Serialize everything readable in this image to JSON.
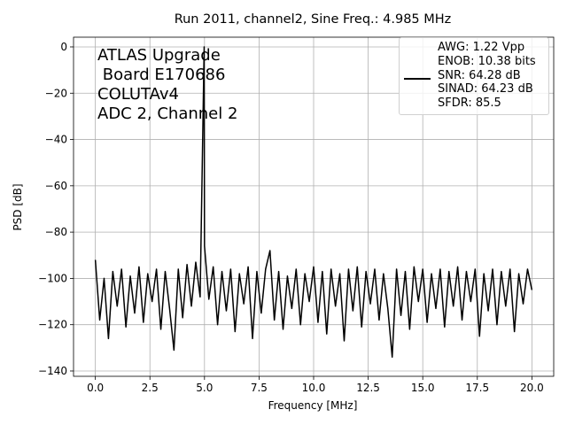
{
  "chart_data": {
    "type": "line",
    "title": "Run 2011, channel2, Sine Freq.: 4.985 MHz",
    "xlabel": "Frequency [MHz]",
    "ylabel": "PSD [dB]",
    "annotation": "ATLAS Upgrade\n Board E170686\nCOLUTAv4\nADC 2, Channel 2",
    "grid": true,
    "legend": "upper right",
    "xlim": [
      -1.0,
      21.0
    ],
    "ylim": [
      -142.3,
      4.2
    ],
    "xticks": [
      {
        "value": 0,
        "label": "0.0"
      },
      2.5,
      {
        "value": 5,
        "label": "5.0"
      },
      7.5,
      {
        "value": 10,
        "label": "10.0"
      },
      12.5,
      {
        "value": 15,
        "label": "15.0"
      },
      17.5,
      {
        "value": 20,
        "label": "20.0"
      }
    ],
    "yticks": [
      0,
      {
        "value": -20,
        "label": "−20"
      },
      {
        "value": -40,
        "label": "−40"
      },
      {
        "value": -60,
        "label": "−60"
      },
      {
        "value": -80,
        "label": "−80"
      },
      {
        "value": -100,
        "label": "−100"
      },
      {
        "value": -120,
        "label": "−120"
      },
      {
        "value": -140,
        "label": "−140"
      }
    ],
    "x": [
      0,
      0.2,
      0.4,
      0.6,
      0.8,
      1.0,
      1.2,
      1.4,
      1.6,
      1.8,
      2.0,
      2.2,
      2.4,
      2.6,
      2.8,
      3.0,
      3.2,
      3.4,
      3.6,
      3.8,
      4.0,
      4.2,
      4.4,
      4.6,
      4.8,
      4.985,
      5.0,
      5.2,
      5.4,
      5.6,
      5.8,
      6.0,
      6.2,
      6.4,
      6.6,
      6.8,
      7.0,
      7.2,
      7.4,
      7.6,
      7.8,
      8.0,
      8.2,
      8.4,
      8.6,
      8.8,
      9.0,
      9.2,
      9.4,
      9.6,
      9.8,
      10.0,
      10.2,
      10.4,
      10.6,
      10.8,
      11.0,
      11.2,
      11.4,
      11.6,
      11.8,
      12.0,
      12.2,
      12.4,
      12.6,
      12.8,
      13.0,
      13.2,
      13.4,
      13.6,
      13.8,
      14.0,
      14.2,
      14.4,
      14.6,
      14.8,
      15.0,
      15.2,
      15.4,
      15.6,
      15.8,
      16.0,
      16.2,
      16.4,
      16.6,
      16.8,
      17.0,
      17.2,
      17.4,
      17.6,
      17.8,
      18.0,
      18.2,
      18.4,
      18.6,
      18.8,
      19.0,
      19.2,
      19.4,
      19.6,
      19.8,
      20.0
    ],
    "series": [
      {
        "name": "AWG: 1.22 Vpp\nENOB: 10.38 bits\nSNR: 64.28 dB\nSINAD: 64.23 dB\nSFDR: 85.5",
        "color": "#000000",
        "values": [
          -92,
          -118,
          -100,
          -126,
          -97,
          -112,
          -96,
          -121,
          -99,
          -115,
          -95,
          -119,
          -98,
          -110,
          -96,
          -122,
          -97,
          -113,
          -131,
          -96,
          -117,
          -94,
          -112,
          -93,
          -108,
          0,
          -86,
          -109,
          -95,
          -120,
          -97,
          -114,
          -96,
          -123,
          -98,
          -111,
          -95,
          -126,
          -97,
          -115,
          -96,
          -88,
          -118,
          -97,
          -122,
          -99,
          -113,
          -96,
          -120,
          -98,
          -110,
          -95,
          -119,
          -97,
          -124,
          -96,
          -112,
          -98,
          -127,
          -96,
          -114,
          -95,
          -121,
          -97,
          -111,
          -96,
          -118,
          -98,
          -113,
          -134,
          -96,
          -116,
          -97,
          -122,
          -95,
          -110,
          -96,
          -119,
          -98,
          -113,
          -96,
          -121,
          -97,
          -112,
          -95,
          -118,
          -97,
          -110,
          -96,
          -125,
          -98,
          -114,
          -96,
          -120,
          -97,
          -112,
          -96,
          -123,
          -98,
          -111,
          -96,
          -105
        ]
      }
    ]
  }
}
